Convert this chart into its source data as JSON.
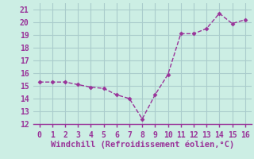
{
  "x": [
    0,
    1,
    2,
    3,
    4,
    5,
    6,
    7,
    8,
    9,
    10,
    11,
    12,
    13,
    14,
    15,
    16
  ],
  "y": [
    15.3,
    15.3,
    15.3,
    15.1,
    14.9,
    14.8,
    14.3,
    14.0,
    12.4,
    14.3,
    15.9,
    19.1,
    19.1,
    19.5,
    20.7,
    19.9,
    20.2
  ],
  "line_color": "#993399",
  "marker": "D",
  "marker_size": 2.5,
  "background_color": "#cceee4",
  "grid_color": "#aacccc",
  "xlabel": "Windchill (Refroidissement éolien,°C)",
  "xlabel_color": "#993399",
  "xlabel_fontsize": 7.5,
  "tick_color": "#993399",
  "tick_fontsize": 7,
  "xlim": [
    -0.5,
    16.5
  ],
  "ylim": [
    12,
    21.5
  ],
  "yticks": [
    12,
    13,
    14,
    15,
    16,
    17,
    18,
    19,
    20,
    21
  ],
  "xticks": [
    0,
    1,
    2,
    3,
    4,
    5,
    6,
    7,
    8,
    9,
    10,
    11,
    12,
    13,
    14,
    15,
    16
  ],
  "spine_color": "#993399",
  "spine_bottom_visible": true
}
